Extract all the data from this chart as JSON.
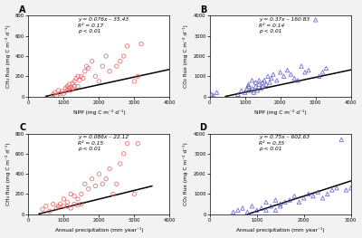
{
  "panel_A": {
    "label": "A",
    "x_data": [
      700,
      750,
      800,
      850,
      900,
      950,
      1000,
      1050,
      1100,
      1100,
      1150,
      1150,
      1200,
      1200,
      1250,
      1250,
      1300,
      1300,
      1350,
      1400,
      1400,
      1450,
      1500,
      1550,
      1600,
      1650,
      1700,
      1800,
      1900,
      2000,
      2100,
      2200,
      2300,
      2500,
      2600,
      2700,
      2800,
      3000,
      3100,
      3200
    ],
    "y_data": [
      20,
      40,
      10,
      60,
      30,
      50,
      30,
      80,
      60,
      100,
      80,
      120,
      60,
      90,
      130,
      80,
      100,
      150,
      180,
      100,
      200,
      160,
      200,
      180,
      250,
      300,
      280,
      350,
      200,
      150,
      300,
      400,
      250,
      300,
      350,
      400,
      500,
      150,
      200,
      520
    ],
    "equation": "y = 0.076x – 35.43",
    "r2": "R² = 0.17",
    "pval": "p < 0.01",
    "xlabel": "NPP (mg C m⁻² d⁻¹)",
    "ylabel": "CH₄ flux (mg C m⁻² d⁻¹)",
    "xlim": [
      0,
      4000
    ],
    "ylim": [
      0,
      800
    ],
    "xticks": [
      0,
      1000,
      2000,
      3000,
      4000
    ],
    "yticks": [
      0,
      200,
      400,
      600,
      800
    ],
    "color": "#e06060",
    "marker": "o",
    "line_slope": 0.076,
    "line_intercept": -35.43,
    "line_xstart": 500,
    "line_xend": 4000
  },
  "panel_B": {
    "label": "B",
    "x_data": [
      50,
      100,
      200,
      800,
      900,
      1000,
      1050,
      1100,
      1100,
      1150,
      1200,
      1200,
      1250,
      1300,
      1300,
      1350,
      1400,
      1400,
      1450,
      1500,
      1500,
      1550,
      1600,
      1650,
      1700,
      1750,
      1800,
      1900,
      2000,
      2100,
      2200,
      2300,
      2400,
      2500,
      2600,
      2700,
      2800,
      3000,
      3100,
      3200,
      3300
    ],
    "y_data": [
      100,
      50,
      200,
      100,
      300,
      200,
      400,
      500,
      600,
      300,
      400,
      800,
      200,
      500,
      700,
      300,
      600,
      800,
      400,
      700,
      500,
      800,
      600,
      1000,
      700,
      900,
      1100,
      800,
      1200,
      1000,
      1300,
      1100,
      900,
      800,
      1500,
      1200,
      1300,
      3800,
      1000,
      1200,
      1400
    ],
    "equation": "y = 0.37x – 160.83",
    "r2": "R² = 0.14",
    "pval": "p < 0.01",
    "xlabel": "NPP (mg C m⁻² d⁻¹)",
    "ylabel": "CO₂ flux (mg C m⁻² d⁻¹)",
    "xlim": [
      0,
      4000
    ],
    "ylim": [
      0,
      4000
    ],
    "xticks": [
      0,
      1000,
      2000,
      3000,
      4000
    ],
    "yticks": [
      0,
      1000,
      2000,
      3000,
      4000
    ],
    "color": "#5555cc",
    "marker": "^",
    "line_slope": 0.37,
    "line_intercept": -160.83,
    "line_xstart": 450,
    "line_xend": 4000
  },
  "panel_C": {
    "label": "C",
    "x_data": [
      400,
      500,
      600,
      700,
      800,
      850,
      900,
      1000,
      1000,
      1100,
      1100,
      1200,
      1200,
      1300,
      1300,
      1400,
      1400,
      1500,
      1500,
      1600,
      1700,
      1800,
      1900,
      2000,
      2100,
      2200,
      2300,
      2400,
      2500,
      2600,
      2700,
      2800,
      3000,
      3100
    ],
    "y_data": [
      50,
      80,
      30,
      100,
      60,
      80,
      100,
      80,
      150,
      80,
      120,
      60,
      200,
      100,
      180,
      90,
      150,
      200,
      100,
      300,
      250,
      350,
      280,
      400,
      300,
      350,
      450,
      200,
      300,
      500,
      600,
      700,
      200,
      700
    ],
    "equation": "y = 0.086x – 22.12",
    "r2": "R² = 0.15",
    "pval": "p < 0.01",
    "xlabel": "Annual precipitation (mm year⁻¹)",
    "ylabel": "CH₄ flux (mg C m⁻² d⁻¹)",
    "xlim": [
      0,
      4000
    ],
    "ylim": [
      0,
      800
    ],
    "xticks": [
      0,
      1000,
      2000,
      3000,
      4000
    ],
    "yticks": [
      0,
      200,
      400,
      600,
      800
    ],
    "color": "#e06060",
    "marker": "o",
    "line_slope": 0.086,
    "line_intercept": -22.12,
    "line_xstart": 300,
    "line_xend": 3500
  },
  "panel_D": {
    "label": "D",
    "x_data": [
      500,
      600,
      700,
      800,
      900,
      1000,
      1100,
      1200,
      1200,
      1300,
      1400,
      1400,
      1500,
      1500,
      1600,
      1700,
      1800,
      1900,
      2000,
      2100,
      2200,
      2300,
      2400,
      2500,
      2600,
      2700,
      2800,
      2900,
      3000
    ],
    "y_data": [
      100,
      200,
      300,
      100,
      400,
      200,
      300,
      600,
      200,
      400,
      700,
      200,
      500,
      400,
      600,
      700,
      900,
      600,
      800,
      1000,
      900,
      1100,
      800,
      1000,
      1200,
      1300,
      3700,
      1200,
      1300
    ],
    "equation": "y = 0.75x – 602.63",
    "r2": "R² = 0.35",
    "pval": "p < 0.01",
    "xlabel": "Annual precipitation (mm year⁻¹)",
    "ylabel": "CO₂ flux (mg C m⁻² d⁻¹)",
    "xlim": [
      0,
      3000
    ],
    "ylim": [
      0,
      4000
    ],
    "xticks": [
      0,
      1000,
      2000,
      3000
    ],
    "yticks": [
      0,
      1000,
      2000,
      3000,
      4000
    ],
    "color": "#5555cc",
    "marker": "^",
    "line_slope": 0.75,
    "line_intercept": -602.63,
    "line_xstart": 800,
    "line_xend": 3000
  },
  "fig_facecolor": "#f2f2f2",
  "axes_facecolor": "#ffffff"
}
